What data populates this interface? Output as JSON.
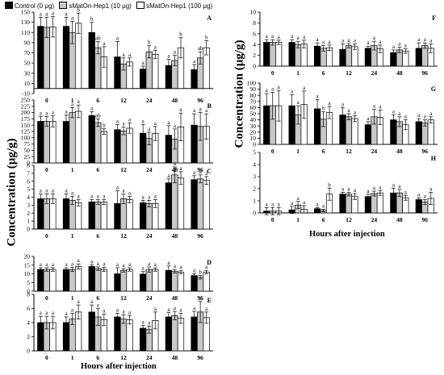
{
  "legend": [
    {
      "label": "Control (0 μg)",
      "color": "#000000"
    },
    {
      "label": "sMatOn-Hep1 (10 μg)",
      "color": "#c8c8c8"
    },
    {
      "label": "sMatOn-Hep1 (100 μg)",
      "color": "#ffffff"
    }
  ],
  "left_ylabel": "Concentration (μg/g)",
  "right_ylabel": "Concentration (μg/g)",
  "left_xlabel": "Hours after injection",
  "right_xlabel": "Hours after injection",
  "chart_data": [
    {
      "type": "bar",
      "panel": "A",
      "categories": [
        "0",
        "1",
        "6",
        "12",
        "24",
        "48",
        "96"
      ],
      "ylim": [
        -10,
        150
      ],
      "yticks": [
        -10,
        10,
        30,
        50,
        70,
        90,
        110,
        130,
        150
      ],
      "series": [
        {
          "values": [
            122,
            122,
            110,
            62,
            38,
            45,
            37
          ],
          "errors": [
            18,
            18,
            20,
            30,
            6,
            12,
            10
          ],
          "letters": [
            "a",
            "a",
            "b",
            "a",
            "a",
            "a",
            "a"
          ]
        },
        {
          "values": [
            120,
            110,
            80,
            48,
            72,
            55,
            60
          ],
          "errors": [
            20,
            22,
            12,
            12,
            12,
            10,
            12
          ],
          "letters": [
            "a",
            "a",
            "ab",
            "a",
            "b",
            "a",
            "ab"
          ]
        },
        {
          "values": [
            121,
            128,
            62,
            52,
            67,
            80,
            80
          ],
          "errors": [
            20,
            20,
            20,
            8,
            8,
            20,
            14
          ],
          "letters": [
            "a",
            "b",
            "a",
            "a",
            "a",
            "b",
            "b"
          ]
        }
      ]
    },
    {
      "type": "bar",
      "panel": "B",
      "categories": [
        "0",
        "1",
        "6",
        "12",
        "24",
        "48",
        "96"
      ],
      "ylim": [
        0,
        250
      ],
      "yticks": [
        0,
        25,
        50,
        75,
        100,
        125,
        150,
        175,
        200,
        225,
        250
      ],
      "series": [
        {
          "values": [
            165,
            165,
            188,
            132,
            118,
            110,
            150
          ],
          "errors": [
            20,
            25,
            15,
            20,
            35,
            38,
            45
          ],
          "letters": [
            "a",
            "a",
            "a",
            "a",
            "a",
            "a",
            "a"
          ]
        },
        {
          "values": [
            165,
            200,
            160,
            127,
            97,
            95,
            145
          ],
          "errors": [
            20,
            20,
            15,
            15,
            25,
            40,
            55
          ],
          "letters": [
            "a",
            "a",
            "ab",
            "a",
            "a",
            "a",
            "a"
          ]
        },
        {
          "values": [
            165,
            205,
            125,
            138,
            117,
            143,
            145
          ],
          "errors": [
            22,
            25,
            12,
            20,
            28,
            55,
            50
          ],
          "letters": [
            "a",
            "a",
            "b",
            "a",
            "a",
            "a",
            "a"
          ]
        }
      ]
    },
    {
      "type": "bar",
      "panel": "C",
      "categories": [
        "0",
        "1",
        "6",
        "12",
        "24",
        "48",
        "96"
      ],
      "ylim": [
        0,
        8
      ],
      "yticks": [
        0,
        1,
        2,
        3,
        4,
        5,
        6,
        7,
        8
      ],
      "series": [
        {
          "values": [
            3.8,
            3.8,
            3.4,
            3.2,
            3.3,
            5.8,
            6.2
          ],
          "errors": [
            0.6,
            0.6,
            0.3,
            1.6,
            0.3,
            0.5,
            0.5
          ],
          "letters": [
            "a",
            "a",
            "a",
            "a",
            "a",
            "a",
            "a"
          ]
        },
        {
          "values": [
            3.8,
            3.6,
            3.4,
            3.8,
            3.2,
            6.8,
            6.3
          ],
          "errors": [
            0.6,
            0.5,
            0.3,
            0.6,
            0.4,
            1.0,
            0.5
          ],
          "letters": [
            "a",
            "a",
            "a",
            "a",
            "a",
            "a",
            "a"
          ]
        },
        {
          "values": [
            3.8,
            3.3,
            3.4,
            3.7,
            3.2,
            6.4,
            6.1
          ],
          "errors": [
            0.6,
            0.4,
            0.3,
            0.4,
            0.5,
            0.8,
            0.5
          ],
          "letters": [
            "a",
            "a",
            "a",
            "a",
            "a",
            "a",
            "a"
          ]
        }
      ]
    },
    {
      "type": "bar",
      "panel": "D",
      "categories": [
        "0",
        "1",
        "6",
        "12",
        "24",
        "48",
        "96"
      ],
      "ylim": [
        0,
        20
      ],
      "yticks": [
        0,
        5,
        10,
        15,
        20
      ],
      "series": [
        {
          "values": [
            12.5,
            12.5,
            14.2,
            10.0,
            9.8,
            12.0,
            9.0
          ],
          "errors": [
            1.0,
            1.0,
            1.0,
            3.5,
            1.5,
            2.5,
            1.0
          ],
          "letters": [
            "a",
            "a",
            "a",
            "a",
            "a",
            "a",
            "a"
          ]
        },
        {
          "values": [
            12.5,
            12.5,
            13.0,
            12.0,
            12.5,
            11.5,
            8.0
          ],
          "errors": [
            1.0,
            1.2,
            1.0,
            1.0,
            1.5,
            1.0,
            1.0
          ],
          "letters": [
            "a",
            "a",
            "a",
            "a",
            "a",
            "a",
            "b"
          ]
        },
        {
          "values": [
            12.5,
            14.2,
            12.5,
            12.5,
            12.5,
            11.0,
            11.0
          ],
          "errors": [
            1.0,
            1.5,
            1.2,
            1.0,
            1.0,
            1.0,
            1.0
          ],
          "letters": [
            "a",
            "a",
            "a",
            "a",
            "a",
            "a",
            "a"
          ]
        }
      ]
    },
    {
      "type": "bar",
      "panel": "E",
      "categories": [
        "0",
        "1",
        "6",
        "12",
        "24",
        "48",
        "96"
      ],
      "ylim": [
        0,
        8
      ],
      "yticks": [
        0,
        2,
        4,
        6,
        8
      ],
      "series": [
        {
          "values": [
            4.0,
            4.0,
            5.5,
            4.8,
            3.2,
            4.8,
            4.8
          ],
          "errors": [
            0.9,
            0.8,
            1.0,
            0.5,
            0.4,
            0.6,
            0.8
          ],
          "letters": [
            "a",
            "a",
            "a",
            "a",
            "a",
            "a",
            "a"
          ]
        },
        {
          "values": [
            4.0,
            4.5,
            4.8,
            4.5,
            3.0,
            5.0,
            5.5
          ],
          "errors": [
            0.9,
            0.8,
            1.2,
            0.6,
            0.5,
            0.6,
            1.5
          ],
          "letters": [
            "a",
            "a",
            "a",
            "a",
            "a",
            "a",
            "a"
          ]
        },
        {
          "values": [
            4.0,
            5.5,
            4.4,
            4.4,
            4.3,
            4.6,
            4.7
          ],
          "errors": [
            0.9,
            1.0,
            0.8,
            0.6,
            1.2,
            0.7,
            0.8
          ],
          "letters": [
            "a",
            "a",
            "a",
            "a",
            "a",
            "a",
            "a"
          ]
        }
      ]
    },
    {
      "type": "bar",
      "panel": "F",
      "categories": [
        "0",
        "1",
        "6",
        "12",
        "24",
        "48",
        "96"
      ],
      "ylim": [
        0,
        10
      ],
      "yticks": [
        0,
        2,
        4,
        6,
        8,
        10
      ],
      "series": [
        {
          "values": [
            4.4,
            4.4,
            3.7,
            3.1,
            3.3,
            2.5,
            3.3
          ],
          "errors": [
            0.5,
            0.5,
            0.6,
            1.0,
            0.4,
            0.5,
            1.0
          ],
          "letters": [
            "a",
            "a",
            "a",
            "a",
            "a",
            "a",
            "a"
          ]
        },
        {
          "values": [
            4.4,
            4.0,
            3.3,
            3.8,
            3.8,
            3.0,
            3.8
          ],
          "errors": [
            0.5,
            0.6,
            0.5,
            0.4,
            0.8,
            0.5,
            0.5
          ],
          "letters": [
            "a",
            "a",
            "a",
            "a",
            "a",
            "a",
            "a"
          ]
        },
        {
          "values": [
            4.4,
            4.1,
            3.4,
            3.6,
            3.2,
            2.8,
            3.3
          ],
          "errors": [
            0.4,
            0.7,
            0.5,
            0.5,
            0.7,
            0.4,
            0.8
          ],
          "letters": [
            "a",
            "a",
            "a",
            "a",
            "a",
            "a",
            "a"
          ]
        }
      ]
    },
    {
      "type": "bar",
      "panel": "G",
      "categories": [
        "0",
        "1",
        "6",
        "12",
        "24",
        "48",
        "96"
      ],
      "ylim": [
        0,
        100
      ],
      "yticks": [
        0,
        10,
        20,
        30,
        40,
        50,
        60,
        70,
        80,
        90,
        100
      ],
      "series": [
        {
          "values": [
            63,
            63,
            58,
            48,
            32,
            40,
            37
          ],
          "errors": [
            20,
            18,
            15,
            12,
            5,
            8,
            5
          ],
          "letters": [
            "a",
            "a",
            "a",
            "a",
            "a",
            "a",
            "a"
          ]
        },
        {
          "values": [
            63,
            48,
            41,
            45,
            45,
            37,
            35
          ],
          "errors": [
            22,
            15,
            12,
            5,
            12,
            8,
            5
          ],
          "letters": [
            "a",
            "a",
            "b",
            "a",
            "a",
            "a",
            "a"
          ]
        },
        {
          "values": [
            63,
            65,
            52,
            42,
            44,
            32,
            40
          ],
          "errors": [
            25,
            22,
            10,
            5,
            12,
            8,
            5
          ],
          "letters": [
            "a",
            "a",
            "a",
            "a",
            "a",
            "a",
            "a"
          ]
        }
      ]
    },
    {
      "type": "bar",
      "panel": "H",
      "categories": [
        "0",
        "1",
        "6",
        "12",
        "24",
        "48",
        "96"
      ],
      "ylim": [
        0,
        5
      ],
      "yticks": [
        0,
        1,
        2,
        3,
        4,
        5
      ],
      "series": [
        {
          "values": [
            0.15,
            0.25,
            0.35,
            1.55,
            1.35,
            1.65,
            1.1
          ],
          "errors": [
            0.3,
            0.3,
            0.1,
            0.15,
            0.2,
            0.4,
            0.15
          ],
          "letters": [
            "a",
            "a",
            "a",
            "a",
            "a",
            "a",
            "a"
          ]
        },
        {
          "values": [
            0.15,
            0.65,
            0.2,
            1.55,
            1.6,
            1.65,
            0.9
          ],
          "errors": [
            0.3,
            0.3,
            0.1,
            0.15,
            0.2,
            0.3,
            0.2
          ],
          "letters": [
            "a",
            "a",
            "a",
            "a",
            "a",
            "a",
            "a"
          ]
        },
        {
          "values": [
            0.15,
            0.3,
            1.55,
            1.35,
            1.65,
            1.25,
            1.2
          ],
          "errors": [
            0.3,
            0.3,
            0.5,
            0.25,
            0.2,
            0.2,
            0.5
          ],
          "letters": [
            "a",
            "a",
            "b",
            "a",
            "a",
            "a",
            "a"
          ]
        }
      ]
    }
  ]
}
